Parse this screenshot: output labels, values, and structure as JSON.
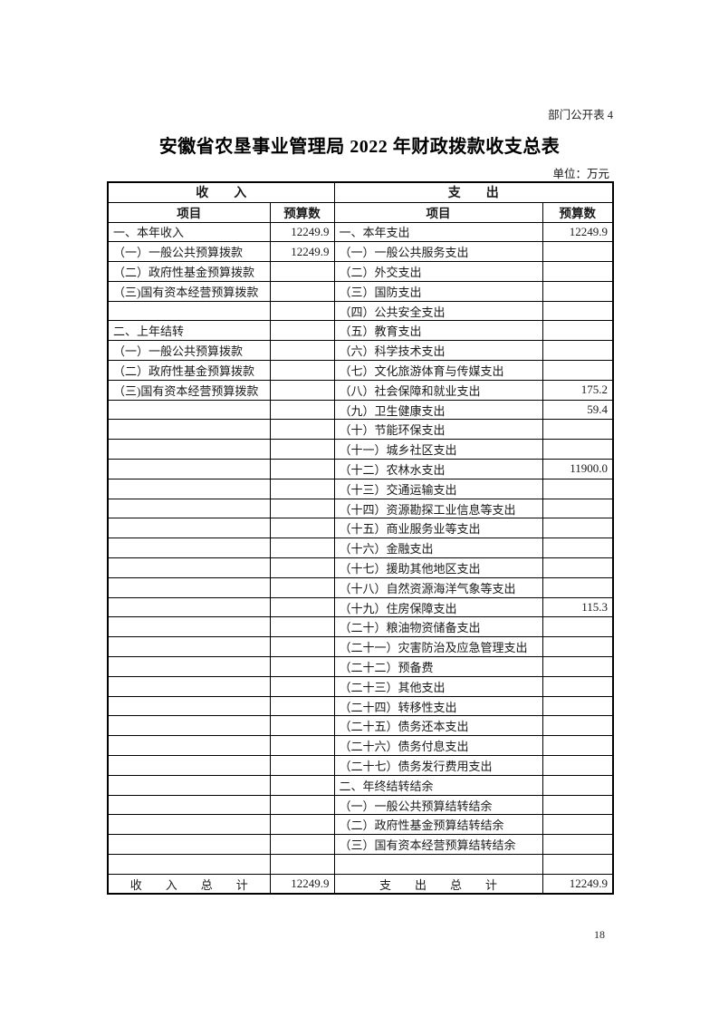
{
  "page": {
    "doc_label": "部门公开表 4",
    "title": "安徽省农垦事业管理局 2022 年财政拨款收支总表",
    "unit_note": "单位：万元",
    "page_number": "18"
  },
  "table": {
    "income_header": "收　　入",
    "expense_header": "支　　出",
    "item_header": "项目",
    "budget_header": "预算数",
    "rows": [
      {
        "income_item": "一、本年收入",
        "income_value": "12249.9",
        "expense_item": "一、本年支出",
        "expense_value": "12249.9"
      },
      {
        "income_item": "（一）一般公共预算拨款",
        "income_value": "12249.9",
        "expense_item": "（一）一般公共服务支出",
        "expense_value": ""
      },
      {
        "income_item": "（二）政府性基金预算拨款",
        "income_value": "",
        "expense_item": "（二）外交支出",
        "expense_value": ""
      },
      {
        "income_item": "（三)国有资本经营预算拨款",
        "income_value": "",
        "expense_item": "（三）国防支出",
        "expense_value": ""
      },
      {
        "income_item": "",
        "income_value": "",
        "expense_item": "（四）公共安全支出",
        "expense_value": ""
      },
      {
        "income_item": "二、上年结转",
        "income_value": "",
        "expense_item": "（五）教育支出",
        "expense_value": ""
      },
      {
        "income_item": "（一）一般公共预算拨款",
        "income_value": "",
        "expense_item": "（六）科学技术支出",
        "expense_value": ""
      },
      {
        "income_item": "（二）政府性基金预算拨款",
        "income_value": "",
        "expense_item": "（七）文化旅游体育与传媒支出",
        "expense_value": ""
      },
      {
        "income_item": "（三)国有资本经营预算拨款",
        "income_value": "",
        "expense_item": "（八）社会保障和就业支出",
        "expense_value": "175.2"
      },
      {
        "income_item": "",
        "income_value": "",
        "expense_item": "（九）卫生健康支出",
        "expense_value": "59.4"
      },
      {
        "income_item": "",
        "income_value": "",
        "expense_item": "（十）节能环保支出",
        "expense_value": ""
      },
      {
        "income_item": "",
        "income_value": "",
        "expense_item": "（十一）城乡社区支出",
        "expense_value": ""
      },
      {
        "income_item": "",
        "income_value": "",
        "expense_item": "（十二）农林水支出",
        "expense_value": "11900.0"
      },
      {
        "income_item": "",
        "income_value": "",
        "expense_item": "（十三）交通运输支出",
        "expense_value": ""
      },
      {
        "income_item": "",
        "income_value": "",
        "expense_item": "（十四）资源勘探工业信息等支出",
        "expense_value": ""
      },
      {
        "income_item": "",
        "income_value": "",
        "expense_item": "（十五）商业服务业等支出",
        "expense_value": ""
      },
      {
        "income_item": "",
        "income_value": "",
        "expense_item": "（十六）金融支出",
        "expense_value": ""
      },
      {
        "income_item": "",
        "income_value": "",
        "expense_item": "（十七）援助其他地区支出",
        "expense_value": ""
      },
      {
        "income_item": "",
        "income_value": "",
        "expense_item": "（十八）自然资源海洋气象等支出",
        "expense_value": ""
      },
      {
        "income_item": "",
        "income_value": "",
        "expense_item": "（十九）住房保障支出",
        "expense_value": "115.3"
      },
      {
        "income_item": "",
        "income_value": "",
        "expense_item": "（二十）粮油物资储备支出",
        "expense_value": ""
      },
      {
        "income_item": "",
        "income_value": "",
        "expense_item": "（二十一）灾害防治及应急管理支出",
        "expense_value": ""
      },
      {
        "income_item": "",
        "income_value": "",
        "expense_item": "（二十二）预备费",
        "expense_value": ""
      },
      {
        "income_item": "",
        "income_value": "",
        "expense_item": "（二十三）其他支出",
        "expense_value": ""
      },
      {
        "income_item": "",
        "income_value": "",
        "expense_item": "（二十四）转移性支出",
        "expense_value": ""
      },
      {
        "income_item": "",
        "income_value": "",
        "expense_item": "（二十五）债务还本支出",
        "expense_value": ""
      },
      {
        "income_item": "",
        "income_value": "",
        "expense_item": "（二十六）债务付息支出",
        "expense_value": ""
      },
      {
        "income_item": "",
        "income_value": "",
        "expense_item": "（二十七）债务发行费用支出",
        "expense_value": ""
      },
      {
        "income_item": "",
        "income_value": "",
        "expense_item": "二、年终结转结余",
        "expense_value": ""
      },
      {
        "income_item": "",
        "income_value": "",
        "expense_item": "（一）一般公共预算结转结余",
        "expense_value": ""
      },
      {
        "income_item": "",
        "income_value": "",
        "expense_item": "（二）政府性基金预算结转结余",
        "expense_value": ""
      },
      {
        "income_item": "",
        "income_value": "",
        "expense_item": "（三）国有资本经营预算结转结余",
        "expense_value": ""
      },
      {
        "income_item": "",
        "income_value": "",
        "expense_item": "",
        "expense_value": ""
      }
    ],
    "total_row": {
      "income_label": "收　　入　　总　　计",
      "income_value": "12249.9",
      "expense_label": "支　　出　　总　　计",
      "expense_value": "12249.9"
    }
  }
}
